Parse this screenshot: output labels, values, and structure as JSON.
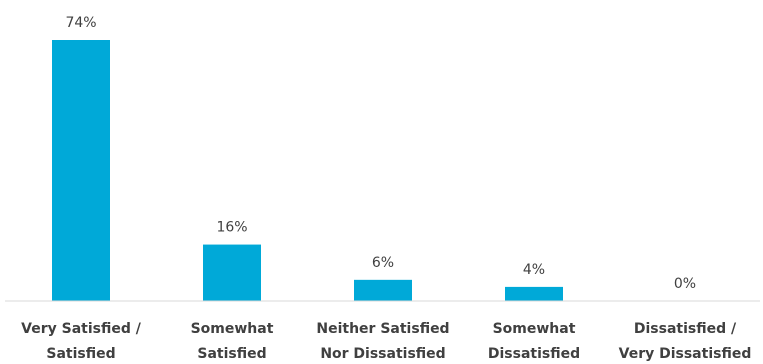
{
  "chart_data": {
    "type": "bar",
    "title": "",
    "xlabel": "",
    "ylabel": "",
    "categories": [
      [
        "Very Satisfied /",
        "Satisfied"
      ],
      [
        "Somewhat",
        "Satisfied"
      ],
      [
        "Neither Satisfied",
        "Nor Dissatisfied"
      ],
      [
        "Somewhat",
        "Dissatisfied"
      ],
      [
        "Dissatisfied /",
        "Very Dissatisfied"
      ]
    ],
    "values": [
      74,
      16,
      6,
      4,
      0
    ],
    "value_labels": [
      "74%",
      "16%",
      "6%",
      "4%",
      "0%"
    ],
    "ylim": [
      0,
      74
    ],
    "grid": false,
    "legend": "none",
    "bar_color": "#00a9d8"
  }
}
